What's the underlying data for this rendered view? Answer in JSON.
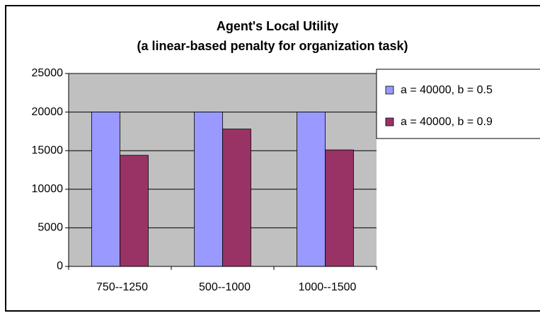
{
  "chart_data": {
    "type": "bar",
    "title": "Agent's Local Utility",
    "subtitle": "(a linear-based penalty for organization task)",
    "categories": [
      "750--1250",
      "500--1000",
      "1000--1500"
    ],
    "series": [
      {
        "name": "a = 40000, b = 0.5",
        "color": "#9999ff",
        "values": [
          20000,
          20000,
          20000
        ]
      },
      {
        "name": "a = 40000, b = 0.9",
        "color": "#993366",
        "values": [
          14400,
          17800,
          15100
        ]
      }
    ],
    "ylim": [
      0,
      25000
    ],
    "yticks": [
      0,
      5000,
      10000,
      15000,
      20000,
      25000
    ],
    "grid": true,
    "legend": "right",
    "plot_background": "#c0c0c0"
  }
}
